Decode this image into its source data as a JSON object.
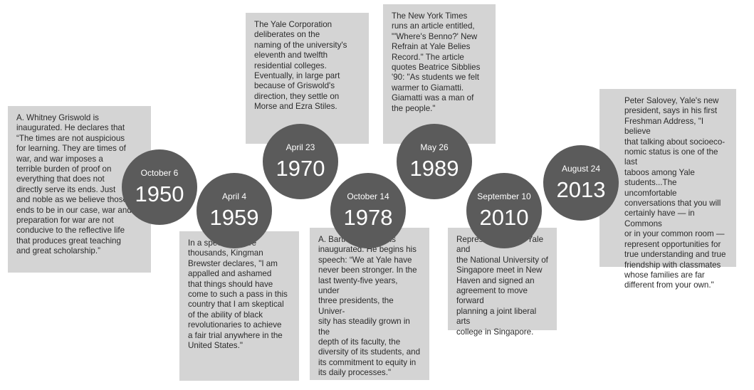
{
  "events": [
    {
      "date": "October 6",
      "year": "1950",
      "text": "A. Whitney Griswold is\ninaugurated. He declares that\n“The times are not auspicious\nfor learning. They are times of\nwar, and war imposes a\nterrible burden of proof on\neverything that does not\ndirectly serve its ends. Just\nand noble as we believe those\nends to be in our case, war and\npreparation for war are not\nconducive to the reflective life\nthat produces great teaching\nand great scholarship.”"
    },
    {
      "date": "April 4",
      "year": "1959",
      "text": " In a speech before\nthousands, Kingman\nBrewster declares, \"I am\nappalled and ashamed\nthat things should have\ncome to such a pass in this\ncountry that I am skeptical\nof the ability of black\nrevolutionaries to achieve\na fair trial anywhere in the\nUnited States.\""
    },
    {
      "date": "April 23",
      "year": "1970",
      "text": "The Yale Corporation\ndeliberates on the\nnaming of the university's\neleventh and twelfth\nresidential colleges.\nEventually, in large part\nbecause of Griswold's\ndirection, they settle on\nMorse and Ezra Stiles."
    },
    {
      "date": "October 14",
      "year": "1978",
      "text": "A. Bartlett Giamatti is\ninaugurated. He begins his\nspeech: “We at Yale have\nnever been stronger. In the\nlast twenty-five years, under\nthree presidents, the Univer-\nsity has steadily grown in the\ndepth of its faculty, the\ndiversity of its students, and\nits commitment to equity in\nits daily processes.\""
    },
    {
      "date": "May 26",
      "year": "1989",
      "text": "The New York Times\nruns an article entitled,\n\"'Where's Benno?' New\nRefrain at Yale Belies\nRecord.\" The article\nquotes Beatrice Sibblies\n'90: \"As students we felt\nwarmer to Giamatti.\nGiamatti was a man of\nthe people.\""
    },
    {
      "date": "September 10",
      "year": "2010",
      "text": "Representatives of Yale and\nthe National University of\nSingapore meet in New\nHaven and signed an\nagreement to move forward\nplanning a joint liberal arts\ncollege in Singapore."
    },
    {
      "date": "August 24",
      "year": "2013",
      "text": "Peter Salovey, Yale's new\npresident, says in his first\nFreshman Address, \"I believe\nthat talking about socioeco-\nnomic status is one of the last\ntaboos among Yale\nstudents...The uncomfortable\nconversations that you will\ncertainly have — in Commons\nor in your common room —\nrepresent opportunities for\ntrue understanding and true\nfriendship with classmates\nwhose families are far\ndifferent from your own.\""
    }
  ]
}
